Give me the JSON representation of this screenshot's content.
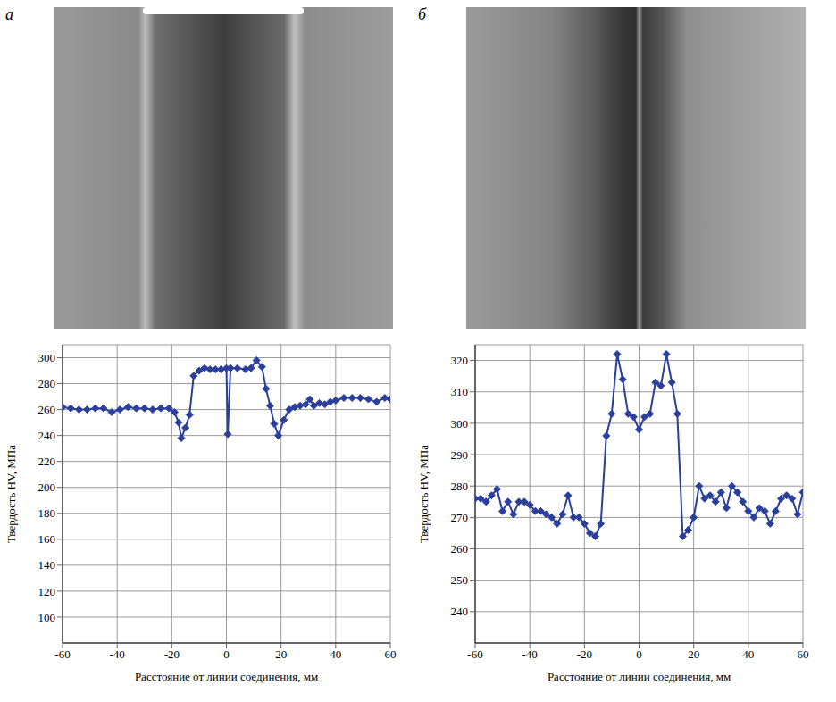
{
  "chart_data": [
    {
      "type": "line",
      "panel_label": "а",
      "x_label": "Расстояние от линии соединения, мм",
      "y_label": "Твердость HV, МПа",
      "x": [
        -60,
        -57,
        -54,
        -51,
        -48,
        -45,
        -42,
        -39,
        -36,
        -33,
        -30,
        -27,
        -24,
        -21,
        -19,
        -17.5,
        -16.5,
        -15,
        -13.5,
        -12,
        -10,
        -8,
        -6,
        -4,
        -2,
        0,
        0.5,
        1.5,
        4,
        7,
        9,
        11,
        13,
        14.5,
        16,
        17.5,
        19,
        21,
        23,
        25,
        27,
        29,
        30.5,
        32,
        34,
        36,
        38,
        40,
        43,
        46,
        49,
        52,
        55,
        58,
        60
      ],
      "values": [
        262,
        261,
        260,
        260,
        261,
        261,
        258,
        260,
        262,
        261,
        261,
        260,
        261,
        261,
        258,
        250,
        238,
        246,
        256,
        286,
        290,
        292,
        291,
        291,
        291,
        292,
        241,
        292,
        292,
        291,
        292,
        298,
        293,
        276,
        263,
        249,
        240,
        252,
        260,
        262,
        263,
        264,
        268,
        263,
        265,
        264,
        266,
        267,
        269,
        269,
        269,
        268,
        266,
        269,
        268
      ],
      "color": "#2b3f9c",
      "marker": "diamond",
      "line_style": "solid",
      "xlim": [
        -60,
        60
      ],
      "xticks": [
        -60,
        -40,
        -20,
        0,
        20,
        40,
        60
      ],
      "ylim": [
        80,
        310
      ],
      "yticks": [
        100,
        120,
        140,
        160,
        180,
        200,
        220,
        240,
        260,
        280,
        300
      ],
      "grid": true
    },
    {
      "type": "line",
      "panel_label": "б",
      "x_label": "Расстояние от линии соединения, мм",
      "y_label": "Твердость HV, МПа",
      "x": [
        -60,
        -58,
        -56,
        -54,
        -52,
        -50,
        -48,
        -46,
        -44,
        -42,
        -40,
        -38,
        -36,
        -34,
        -32,
        -30,
        -28,
        -26,
        -24,
        -22,
        -20,
        -18,
        -16,
        -14,
        -12,
        -10,
        -8,
        -6,
        -4,
        -2,
        0,
        2,
        4,
        6,
        8,
        10,
        12,
        14,
        16,
        18,
        20,
        22,
        24,
        26,
        28,
        30,
        32,
        34,
        36,
        38,
        40,
        42,
        44,
        46,
        48,
        50,
        52,
        54,
        56,
        58,
        60
      ],
      "values": [
        276,
        276,
        275,
        277,
        279,
        272,
        275,
        271,
        275,
        275,
        274,
        272,
        272,
        271,
        270,
        268,
        271,
        277,
        270,
        270,
        268,
        265,
        264,
        268,
        296,
        303,
        322,
        314,
        303,
        302,
        298,
        302,
        303,
        313,
        312,
        322,
        313,
        303,
        264,
        266,
        270,
        280,
        276,
        277,
        275,
        278,
        273,
        280,
        278,
        275,
        272,
        270,
        273,
        272,
        268,
        272,
        276,
        277,
        276,
        271,
        278
      ],
      "color": "#2b3f9c",
      "marker": "diamond",
      "line_style": "solid",
      "xlim": [
        -60,
        60
      ],
      "xticks": [
        -60,
        -40,
        -20,
        0,
        20,
        40,
        60
      ],
      "ylim": [
        230,
        325
      ],
      "yticks": [
        240,
        250,
        260,
        270,
        280,
        290,
        300,
        310,
        320
      ],
      "grid": true
    }
  ]
}
